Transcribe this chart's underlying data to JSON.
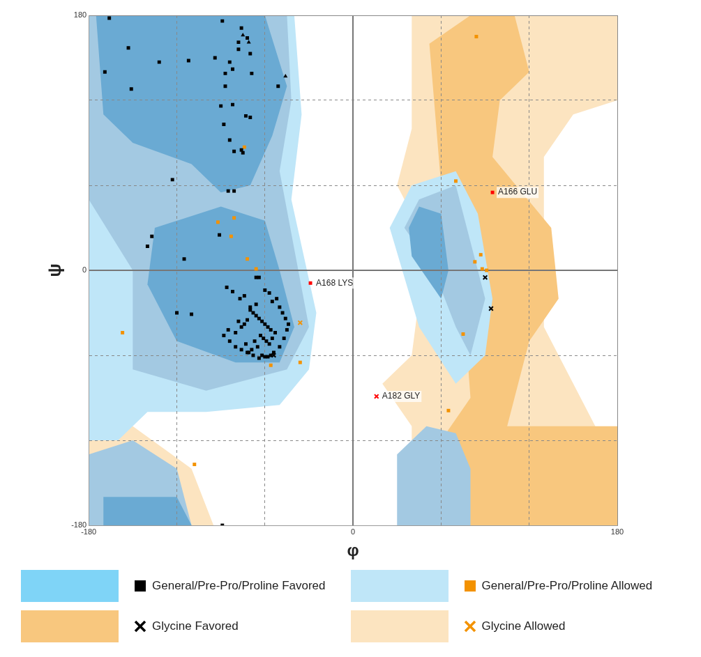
{
  "chart_data": {
    "type": "scatter",
    "xlabel": "φ",
    "ylabel": "ψ",
    "xlim": [
      -180,
      180
    ],
    "ylim": [
      -180,
      180
    ],
    "xticks": [
      -180,
      {
        "value": -120,
        "label": null
      },
      {
        "value": -60,
        "label": null
      },
      0,
      {
        "value": 60,
        "label": null
      },
      {
        "value": 120,
        "label": null
      },
      180
    ],
    "yticks": [
      -180,
      {
        "value": -120,
        "label": null
      },
      {
        "value": -60,
        "label": null
      },
      0,
      {
        "value": 60,
        "label": null
      },
      {
        "value": 120,
        "label": null
      },
      180
    ],
    "grid": true,
    "legend": "bottom",
    "series": [
      {
        "name": "General/Pre-Pro/Proline Favored",
        "color": "#000000",
        "marker": "square",
        "x": [
          -166,
          -89,
          -76,
          -72,
          -78,
          -153,
          -132,
          -112,
          -169,
          -94,
          -84,
          -82,
          -87,
          -70,
          -78,
          -69,
          -151,
          -87,
          -51,
          -82,
          -90,
          -73,
          -70,
          -88,
          -84,
          -76,
          -81,
          -75,
          -123,
          -85,
          -81,
          -137,
          -140,
          -115,
          -91,
          -120,
          -110,
          -89,
          -66,
          -64,
          -86,
          -82,
          -77,
          -74,
          -60,
          -57,
          -55,
          -52,
          -50,
          -48,
          -46,
          -44,
          -70,
          -68,
          -66,
          -64,
          -62,
          -60,
          -58,
          -56,
          -72,
          -74,
          -76,
          -78,
          -80,
          -63,
          -61,
          -59,
          -57,
          -55,
          -53,
          -67,
          -65,
          -69,
          -71,
          -73,
          -62,
          -58,
          -54,
          -50,
          -47,
          -45,
          -85,
          -88,
          -84,
          -80,
          -76,
          -72,
          -68,
          -64,
          -60,
          -56,
          -66,
          -70
        ],
        "values": [
          178,
          176,
          171,
          164,
          161,
          157,
          147,
          148,
          140,
          150,
          147,
          142,
          139,
          153,
          156,
          139,
          128,
          130,
          130,
          117,
          116,
          109,
          108,
          103,
          92,
          85,
          84,
          83,
          64,
          56,
          56,
          24,
          17,
          8,
          25,
          -30,
          -31,
          -180,
          -5,
          -5,
          -12,
          -15,
          -20,
          -18,
          -14,
          -16,
          -22,
          -20,
          -26,
          -30,
          -34,
          -38,
          -28,
          -30,
          -32,
          -34,
          -36,
          -38,
          -40,
          -42,
          -35,
          -38,
          -40,
          -36,
          -44,
          -46,
          -48,
          -50,
          -52,
          -48,
          -44,
          -50,
          -54,
          -56,
          -58,
          -52,
          -60,
          -61,
          -58,
          -54,
          -48,
          -42,
          -42,
          -46,
          -50,
          -54,
          -56,
          -58,
          -60,
          -62,
          -61,
          -60,
          -24,
          -26
        ]
      },
      {
        "color": "#000000",
        "marker": "triangle",
        "x": [
          -75,
          -71,
          -46
        ],
        "values": [
          166,
          161,
          137
        ]
      },
      {
        "name": "General/Pre-Pro/Proline Allowed",
        "color": "#f39200",
        "marker": "square",
        "x": [
          84,
          -74,
          70,
          -92,
          -81,
          -83,
          -72,
          -66,
          -157,
          75,
          -36,
          -56,
          65,
          -108,
          83,
          87,
          88,
          91
        ],
        "values": [
          165,
          87,
          63,
          34,
          37,
          24,
          8,
          1,
          -44,
          -45,
          -65,
          -67,
          -99,
          -137,
          6,
          11,
          1,
          0
        ]
      },
      {
        "name": "Glycine Favored",
        "color": "#000000",
        "marker": "cross",
        "x": [
          90,
          94,
          -54
        ],
        "values": [
          -5,
          -27,
          -60
        ]
      },
      {
        "name": "Glycine Allowed",
        "color": "#f39200",
        "marker": "cross",
        "x": [
          -36
        ],
        "values": [
          -37
        ]
      },
      {
        "color": "#ff0000",
        "marker": "square",
        "x": [
          95,
          -29
        ],
        "values": [
          55,
          -9
        ]
      },
      {
        "color": "#ff0000",
        "marker": "cross",
        "x": [
          16
        ],
        "values": [
          -89
        ]
      }
    ],
    "annotations": [
      {
        "text": "A166 GLU",
        "x": 95,
        "y": 55
      },
      {
        "text": "A168 LYS",
        "x": -29,
        "y": -9
      },
      {
        "text": "A182 GLY",
        "x": 16,
        "y": -89
      }
    ]
  }
}
